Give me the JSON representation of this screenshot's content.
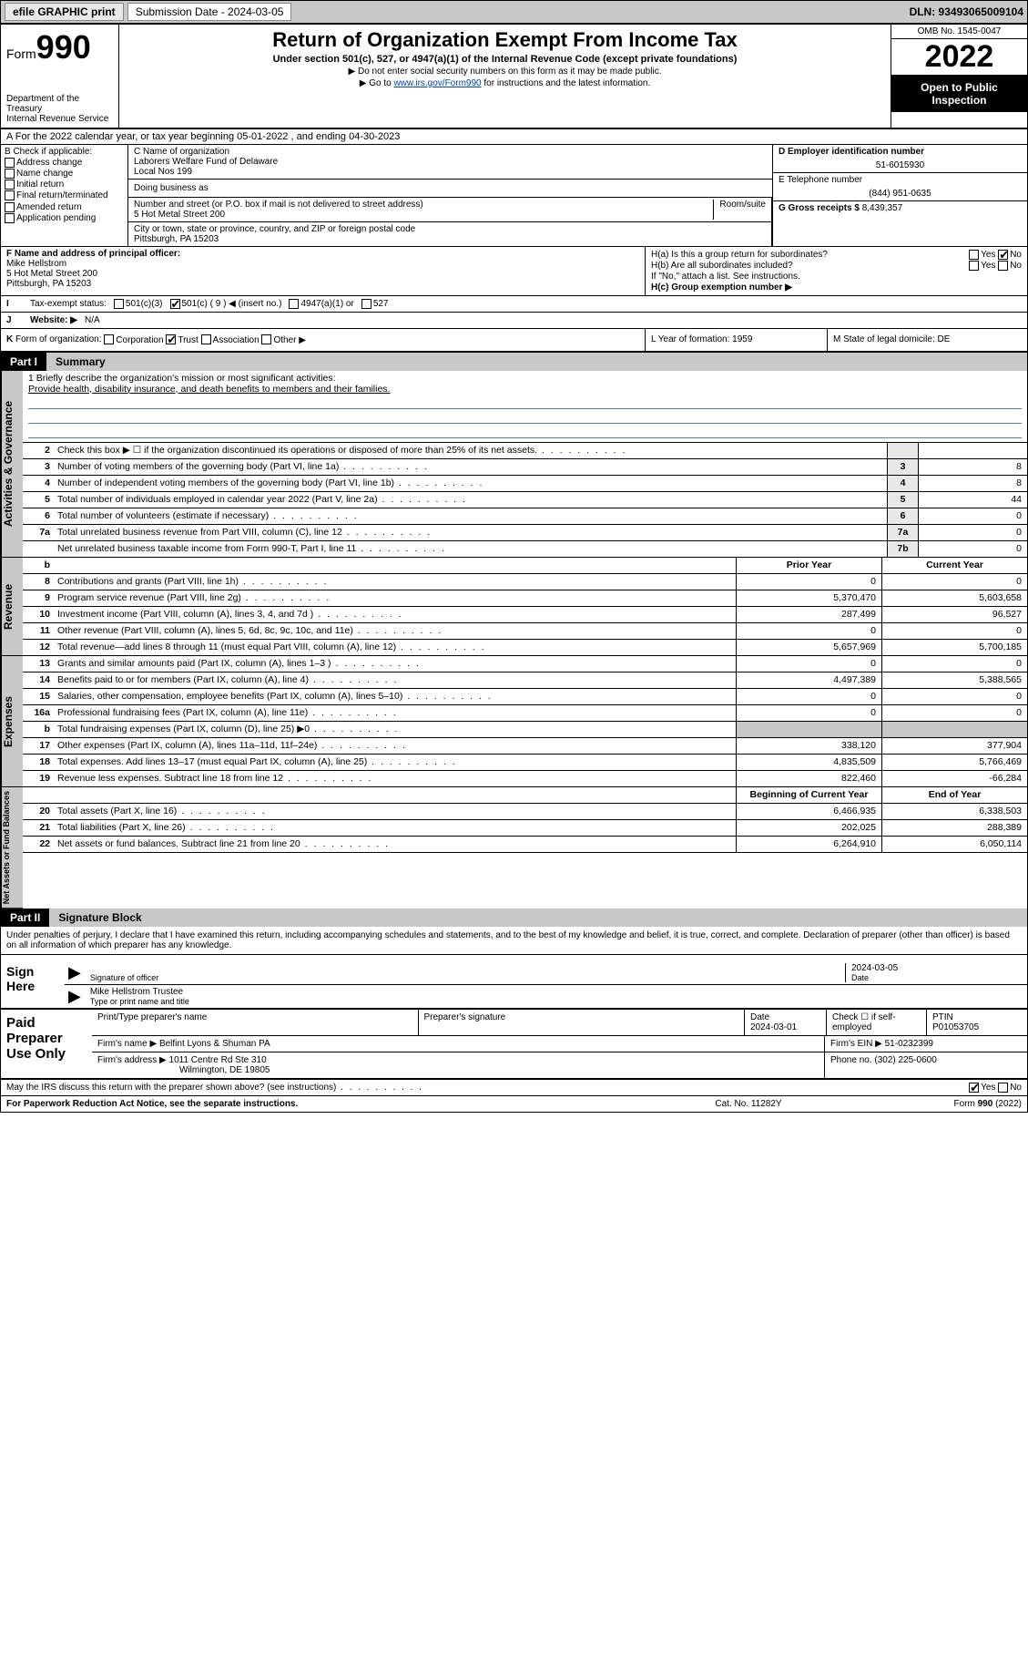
{
  "topbar": {
    "efile": "efile GRAPHIC print",
    "sub_label": "Submission Date - 2024-03-05",
    "dln": "DLN: 93493065009104"
  },
  "header": {
    "form_label": "Form",
    "form_num": "990",
    "dept": "Department of the Treasury",
    "irs": "Internal Revenue Service",
    "title": "Return of Organization Exempt From Income Tax",
    "sub": "Under section 501(c), 527, or 4947(a)(1) of the Internal Revenue Code (except private foundations)",
    "note1": "▶ Do not enter social security numbers on this form as it may be made public.",
    "note2_pre": "▶ Go to ",
    "note2_link": "www.irs.gov/Form990",
    "note2_post": " for instructions and the latest information.",
    "omb": "OMB No. 1545-0047",
    "year": "2022",
    "open": "Open to Public Inspection"
  },
  "rowA": "A For the 2022 calendar year, or tax year beginning 05-01-2022   , and ending 04-30-2023",
  "colB": {
    "hdr": "B Check if applicable:",
    "items": [
      "Address change",
      "Name change",
      "Initial return",
      "Final return/terminated",
      "Amended return",
      "Application pending"
    ]
  },
  "colC": {
    "name_lbl": "C Name of organization",
    "name1": "Laborers Welfare Fund of Delaware",
    "name2": "Local Nos 199",
    "dba_lbl": "Doing business as",
    "street_lbl": "Number and street (or P.O. box if mail is not delivered to street address)",
    "room_lbl": "Room/suite",
    "street": "5 Hot Metal Street 200",
    "city_lbl": "City or town, state or province, country, and ZIP or foreign postal code",
    "city": "Pittsburgh, PA  15203"
  },
  "colDE": {
    "d_lbl": "D Employer identification number",
    "d_val": "51-6015930",
    "e_lbl": "E Telephone number",
    "e_val": "(844) 951-0635",
    "g_lbl": "G Gross receipts $",
    "g_val": "8,439,357"
  },
  "colF": {
    "lbl": "F Name and address of principal officer:",
    "name": "Mike Hellstrom",
    "addr1": "5 Hot Metal Street 200",
    "addr2": "Pittsburgh, PA  15203"
  },
  "colH": {
    "ha": "H(a)  Is this a group return for subordinates?",
    "ha_ans": "No",
    "hb": "H(b)  Are all subordinates included?",
    "hb_note": "If \"No,\" attach a list. See instructions.",
    "hc": "H(c)  Group exemption number ▶"
  },
  "rowI": {
    "lbl": "I",
    "txt": "Tax-exempt status:",
    "opt1": "501(c)(3)",
    "opt2": "501(c) ( 9 ) ◀ (insert no.)",
    "opt3": "4947(a)(1) or",
    "opt4": "527"
  },
  "rowJ": {
    "lbl": "J",
    "txt": "Website: ▶",
    "val": "N/A"
  },
  "rowK": {
    "lbl": "K",
    "txt": "Form of organization:",
    "opts": [
      "Corporation",
      "Trust",
      "Association",
      "Other ▶"
    ]
  },
  "rowL": {
    "txt": "L Year of formation: 1959"
  },
  "rowM": {
    "txt": "M State of legal domicile: DE"
  },
  "part1": {
    "num": "Part I",
    "title": "Summary"
  },
  "mission": {
    "q": "1  Briefly describe the organization's mission or most significant activities:",
    "a": "Provide health, disability insurance, and death benefits to members and their families."
  },
  "gov_rows": [
    {
      "n": "2",
      "d": "Check this box ▶ ☐  if the organization discontinued its operations or disposed of more than 25% of its net assets.",
      "box": "",
      "v": ""
    },
    {
      "n": "3",
      "d": "Number of voting members of the governing body (Part VI, line 1a)",
      "box": "3",
      "v": "8"
    },
    {
      "n": "4",
      "d": "Number of independent voting members of the governing body (Part VI, line 1b)",
      "box": "4",
      "v": "8"
    },
    {
      "n": "5",
      "d": "Total number of individuals employed in calendar year 2022 (Part V, line 2a)",
      "box": "5",
      "v": "44"
    },
    {
      "n": "6",
      "d": "Total number of volunteers (estimate if necessary)",
      "box": "6",
      "v": "0"
    },
    {
      "n": "7a",
      "d": "Total unrelated business revenue from Part VIII, column (C), line 12",
      "box": "7a",
      "v": "0"
    },
    {
      "n": "",
      "d": "Net unrelated business taxable income from Form 990-T, Part I, line 11",
      "box": "7b",
      "v": "0"
    }
  ],
  "two_col_hdr": {
    "n": "b",
    "d": "",
    "c1": "Prior Year",
    "c2": "Current Year"
  },
  "rev_rows": [
    {
      "n": "8",
      "d": "Contributions and grants (Part VIII, line 1h)",
      "c1": "0",
      "c2": "0"
    },
    {
      "n": "9",
      "d": "Program service revenue (Part VIII, line 2g)",
      "c1": "5,370,470",
      "c2": "5,603,658"
    },
    {
      "n": "10",
      "d": "Investment income (Part VIII, column (A), lines 3, 4, and 7d )",
      "c1": "287,499",
      "c2": "96,527"
    },
    {
      "n": "11",
      "d": "Other revenue (Part VIII, column (A), lines 5, 6d, 8c, 9c, 10c, and 11e)",
      "c1": "0",
      "c2": "0"
    },
    {
      "n": "12",
      "d": "Total revenue—add lines 8 through 11 (must equal Part VIII, column (A), line 12)",
      "c1": "5,657,969",
      "c2": "5,700,185"
    }
  ],
  "exp_rows": [
    {
      "n": "13",
      "d": "Grants and similar amounts paid (Part IX, column (A), lines 1–3 )",
      "c1": "0",
      "c2": "0"
    },
    {
      "n": "14",
      "d": "Benefits paid to or for members (Part IX, column (A), line 4)",
      "c1": "4,497,389",
      "c2": "5,388,565"
    },
    {
      "n": "15",
      "d": "Salaries, other compensation, employee benefits (Part IX, column (A), lines 5–10)",
      "c1": "0",
      "c2": "0"
    },
    {
      "n": "16a",
      "d": "Professional fundraising fees (Part IX, column (A), line 11e)",
      "c1": "0",
      "c2": "0"
    },
    {
      "n": "b",
      "d": "Total fundraising expenses (Part IX, column (D), line 25) ▶0",
      "c1": "",
      "c2": "",
      "gray": true
    },
    {
      "n": "17",
      "d": "Other expenses (Part IX, column (A), lines 11a–11d, 11f–24e)",
      "c1": "338,120",
      "c2": "377,904"
    },
    {
      "n": "18",
      "d": "Total expenses. Add lines 13–17 (must equal Part IX, column (A), line 25)",
      "c1": "4,835,509",
      "c2": "5,766,469"
    },
    {
      "n": "19",
      "d": "Revenue less expenses. Subtract line 18 from line 12",
      "c1": "822,460",
      "c2": "-66,284"
    }
  ],
  "na_hdr": {
    "c1": "Beginning of Current Year",
    "c2": "End of Year"
  },
  "na_rows": [
    {
      "n": "20",
      "d": "Total assets (Part X, line 16)",
      "c1": "6,466,935",
      "c2": "6,338,503"
    },
    {
      "n": "21",
      "d": "Total liabilities (Part X, line 26)",
      "c1": "202,025",
      "c2": "288,389"
    },
    {
      "n": "22",
      "d": "Net assets or fund balances. Subtract line 21 from line 20",
      "c1": "6,264,910",
      "c2": "6,050,114"
    }
  ],
  "vlabels": {
    "gov": "Activities & Governance",
    "rev": "Revenue",
    "exp": "Expenses",
    "na": "Net Assets or Fund Balances"
  },
  "part2": {
    "num": "Part II",
    "title": "Signature Block"
  },
  "sig_note": "Under penalties of perjury, I declare that I have examined this return, including accompanying schedules and statements, and to the best of my knowledge and belief, it is true, correct, and complete. Declaration of preparer (other than officer) is based on all information of which preparer has any knowledge.",
  "sign": {
    "left": "Sign Here",
    "sig_lbl": "Signature of officer",
    "date": "2024-03-05",
    "date_lbl": "Date",
    "name": "Mike Hellstrom Trustee",
    "name_lbl": "Type or print name and title"
  },
  "prep": {
    "left": "Paid Preparer Use Only",
    "r1": {
      "c1_lbl": "Print/Type preparer's name",
      "c1": "",
      "c2_lbl": "Preparer's signature",
      "c2": "",
      "c3_lbl": "Date",
      "c3": "2024-03-01",
      "c4_lbl": "Check ☐ if self-employed",
      "c5_lbl": "PTIN",
      "c5": "P01053705"
    },
    "r2": {
      "lbl": "Firm's name    ▶",
      "val": "Belfint Lyons & Shuman PA",
      "ein_lbl": "Firm's EIN ▶",
      "ein": "51-0232399"
    },
    "r3": {
      "lbl": "Firm's address ▶",
      "val1": "1011 Centre Rd Ste 310",
      "val2": "Wilmington, DE  19805",
      "ph_lbl": "Phone no.",
      "ph": "(302) 225-0600"
    }
  },
  "discuss": "May the IRS discuss this return with the preparer shown above? (see instructions)",
  "discuss_yes": "Yes",
  "discuss_no": "No",
  "footer": {
    "l": "For Paperwork Reduction Act Notice, see the separate instructions.",
    "m": "Cat. No. 11282Y",
    "r": "Form 990 (2022)"
  }
}
